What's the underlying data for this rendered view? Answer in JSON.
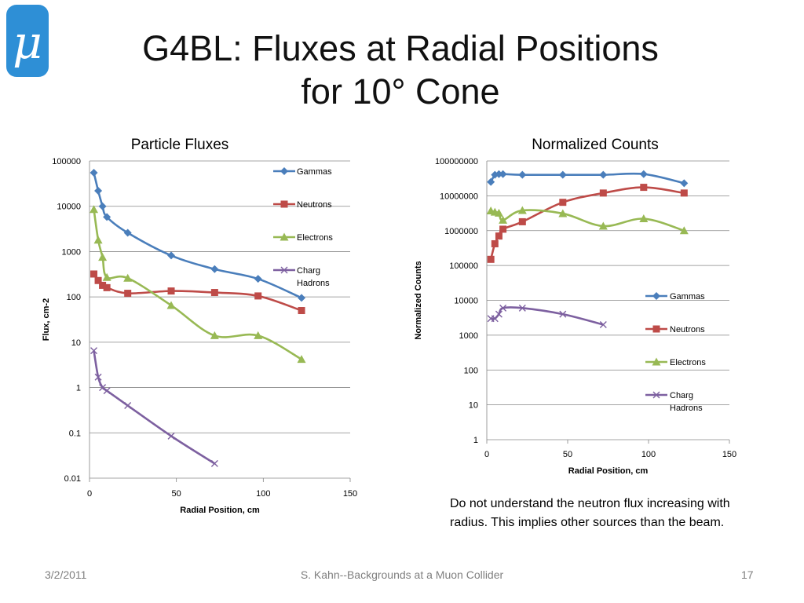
{
  "slide": {
    "title_line1": "G4BL: Fluxes at Radial Positions",
    "title_line2": "for 10° Cone",
    "logo_glyph": "μ",
    "note": "Do not understand the neutron flux increasing with radius.  This implies other sources than the beam.",
    "footer_date": "3/2/2011",
    "footer_center": "S. Kahn--Backgrounds at a Muon Collider",
    "footer_page": "17"
  },
  "colors": {
    "gammas": "#4a7ebb",
    "neutrons": "#be4b48",
    "electrons": "#98b954",
    "charg_hadrons": "#7d60a0",
    "logo": "#2e8fd6",
    "grid": "#868686"
  },
  "chart_data": [
    {
      "type": "line",
      "title": "Particle Fluxes",
      "xlabel": "Radial Position, cm",
      "ylabel": "Flux, cm-2",
      "xlim": [
        0,
        150
      ],
      "ylim": [
        0.01,
        100000
      ],
      "ylog": true,
      "xticks": [
        0,
        50,
        100,
        150
      ],
      "xtick_labels": [
        "0",
        "50",
        "100",
        "150"
      ],
      "yticks": [
        0.01,
        0.1,
        1,
        10,
        100,
        1000,
        10000,
        100000
      ],
      "ytick_labels": [
        "0.01",
        "0.1",
        "1",
        "10",
        "100",
        "1000",
        "10000",
        "100000"
      ],
      "grid": true,
      "legend": "right",
      "series": [
        {
          "name": "Gammas",
          "key": "gammas",
          "marker": "diamond",
          "x": [
            2.5,
            5,
            7.5,
            10,
            22,
            47,
            72,
            97,
            122
          ],
          "y": [
            55000,
            22000,
            10000,
            5800,
            2600,
            820,
            410,
            250,
            95
          ]
        },
        {
          "name": "Neutrons",
          "key": "neutrons",
          "marker": "square",
          "x": [
            2.5,
            5,
            7.5,
            10,
            22,
            47,
            72,
            97,
            122
          ],
          "y": [
            320,
            230,
            180,
            160,
            120,
            135,
            125,
            105,
            50
          ]
        },
        {
          "name": "Electrons",
          "key": "electrons",
          "marker": "triangle",
          "x": [
            2.5,
            5,
            7.5,
            10,
            22,
            47,
            72,
            97,
            122
          ],
          "y": [
            8500,
            1800,
            750,
            270,
            260,
            65,
            14,
            14,
            4.2
          ]
        },
        {
          "name": "Charg Hadrons",
          "key": "charg_hadrons",
          "marker": "x",
          "x": [
            2.5,
            5,
            7.5,
            10,
            22,
            47,
            72
          ],
          "y": [
            6.5,
            1.7,
            1.0,
            0.85,
            0.4,
            0.085,
            0.021
          ]
        }
      ]
    },
    {
      "type": "line",
      "title": "Normalized Counts",
      "xlabel": "Radial Position, cm",
      "ylabel": "Normalized Counts",
      "xlim": [
        0,
        150
      ],
      "ylim": [
        1,
        100000000
      ],
      "ylog": true,
      "xticks": [
        0,
        50,
        100,
        150
      ],
      "xtick_labels": [
        "0",
        "50",
        "100",
        "150"
      ],
      "yticks": [
        1,
        10,
        100,
        1000,
        10000,
        100000,
        1000000,
        10000000,
        100000000
      ],
      "ytick_labels": [
        "1",
        "10",
        "100",
        "1000",
        "10000",
        "100000",
        "1000000",
        "10000000",
        "100000000"
      ],
      "grid": true,
      "legend": "right",
      "series": [
        {
          "name": "Gammas",
          "key": "gammas",
          "marker": "diamond",
          "x": [
            2.5,
            5,
            7.5,
            10,
            22,
            47,
            72,
            97,
            122
          ],
          "y": [
            25000000,
            40000000,
            42000000,
            42000000,
            40000000,
            40000000,
            40000000,
            42000000,
            23000000
          ]
        },
        {
          "name": "Neutrons",
          "key": "neutrons",
          "marker": "square",
          "x": [
            2.5,
            5,
            7.5,
            10,
            22,
            47,
            72,
            97,
            122
          ],
          "y": [
            150000,
            420000,
            700000,
            1100000,
            1800000,
            6500000,
            12000000,
            17500000,
            12000000
          ]
        },
        {
          "name": "Electrons",
          "key": "electrons",
          "marker": "triangle",
          "x": [
            2.5,
            5,
            7.5,
            10,
            22,
            47,
            72,
            97,
            122
          ],
          "y": [
            3700000,
            3400000,
            3200000,
            2000000,
            3800000,
            3100000,
            1350000,
            2200000,
            1000000
          ]
        },
        {
          "name": "Charg Hadrons",
          "key": "charg_hadrons",
          "marker": "x",
          "x": [
            2.5,
            5,
            7.5,
            10,
            22,
            47,
            72
          ],
          "y": [
            3000,
            3000,
            4000,
            6000,
            6000,
            4000,
            2000
          ]
        }
      ]
    }
  ]
}
